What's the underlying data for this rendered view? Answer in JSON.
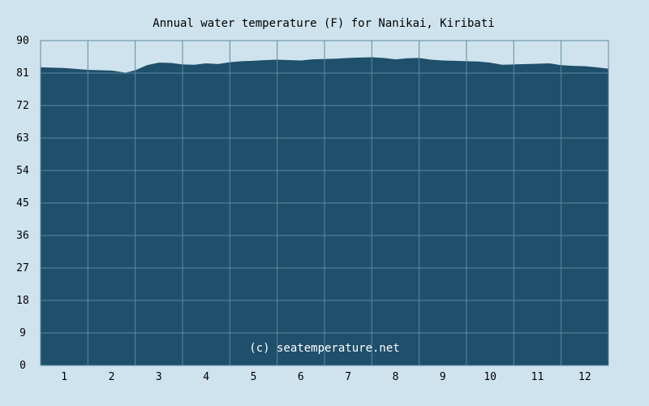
{
  "chart_data": {
    "type": "area",
    "title": "Annual water temperature (F) for Nanikai, Kiribati",
    "xlabel": "",
    "ylabel": "",
    "x_tick_labels": [
      "1",
      "2",
      "3",
      "4",
      "5",
      "6",
      "7",
      "8",
      "9",
      "10",
      "11",
      "12"
    ],
    "y_tick_labels": [
      "0",
      "9",
      "18",
      "27",
      "36",
      "45",
      "54",
      "63",
      "72",
      "81",
      "90"
    ],
    "ylim": [
      0,
      90
    ],
    "grid": true,
    "credit": "(c) seatemperature.net",
    "series": [
      {
        "x": [
          0.0,
          0.5,
          1.0,
          1.5,
          1.8,
          2.0,
          2.25,
          2.5,
          2.75,
          3.0,
          3.25,
          3.5,
          3.75,
          4.0,
          4.25,
          4.5,
          4.75,
          5.0,
          5.25,
          5.5,
          5.75,
          6.0,
          6.25,
          6.5,
          6.75,
          7.0,
          7.25,
          7.5,
          7.75,
          8.0,
          8.25,
          8.5,
          8.75,
          9.0,
          9.25,
          9.5,
          9.75,
          10.0,
          10.25,
          10.5,
          10.75,
          11.0,
          11.25,
          11.5,
          11.75,
          12.0
        ],
        "values": [
          82.6,
          82.4,
          81.9,
          81.7,
          81.1,
          81.8,
          83.2,
          83.9,
          83.8,
          83.4,
          83.3,
          83.7,
          83.5,
          84.0,
          84.3,
          84.4,
          84.6,
          84.7,
          84.6,
          84.5,
          84.8,
          84.9,
          85.0,
          85.2,
          85.3,
          85.4,
          85.2,
          84.8,
          85.1,
          85.2,
          84.7,
          84.5,
          84.4,
          84.3,
          84.2,
          83.9,
          83.3,
          83.4,
          83.5,
          83.6,
          83.7,
          83.2,
          83.0,
          82.9,
          82.6,
          82.2
        ]
      }
    ],
    "colors": {
      "background": "#cfe3ee",
      "plot_background": "#cfe3ee",
      "fill": "#1e4f6b",
      "grid": "#5f8aa0"
    }
  }
}
